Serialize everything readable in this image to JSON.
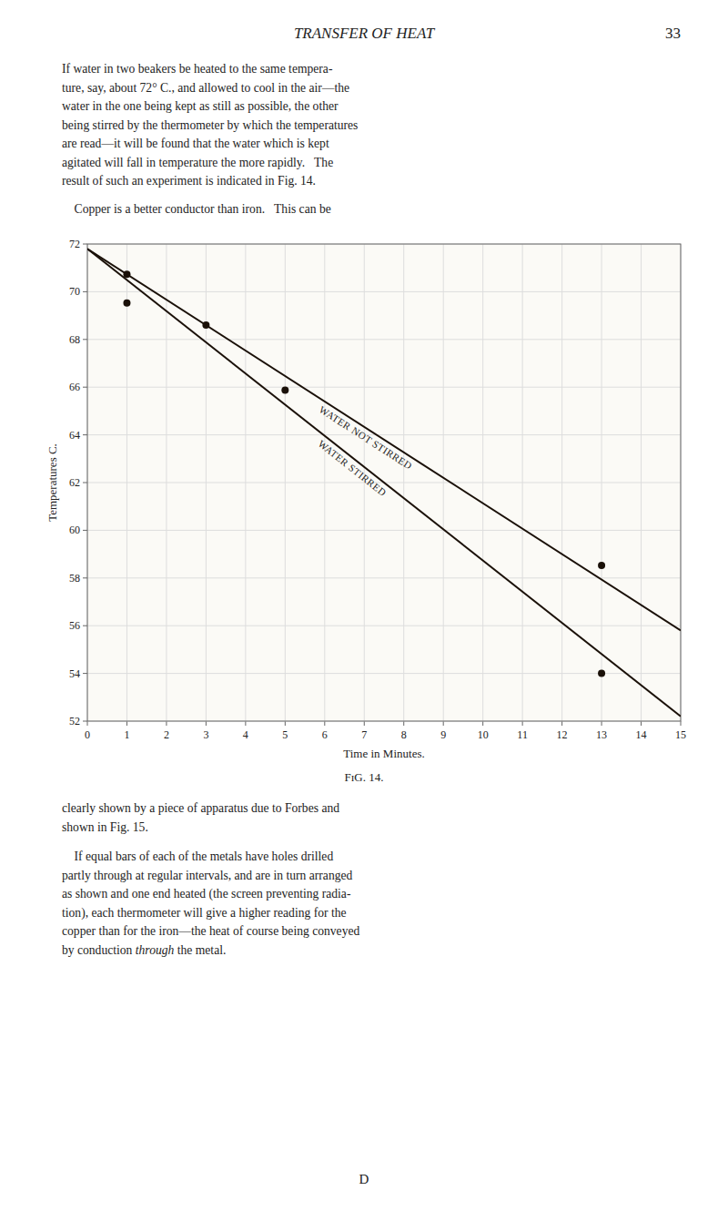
{
  "chart_data": {
    "type": "line",
    "title": "FɪG. 14.",
    "xlabel": "Time in Minutes.",
    "ylabel": "Temperatures C.",
    "xlim": [
      0,
      15
    ],
    "ylim": [
      52,
      72
    ],
    "xticks": [
      0,
      1,
      2,
      3,
      4,
      5,
      6,
      7,
      8,
      9,
      10,
      11,
      12,
      13,
      14,
      15
    ],
    "yticks": [
      52,
      54,
      56,
      58,
      60,
      62,
      64,
      66,
      68,
      70,
      72
    ],
    "grid": true,
    "series": [
      {
        "name": "WATER NOT STIRRED",
        "type": "line",
        "color": "#1a1008",
        "x": [
          0,
          15
        ],
        "values": [
          71.8,
          55.8
        ]
      },
      {
        "name": "WATER STIRRED",
        "type": "line",
        "color": "#1a1008",
        "x": [
          0,
          15
        ],
        "values": [
          71.8,
          52.2
        ]
      },
      {
        "type": "scatter",
        "marker": "circle",
        "color": "#1a1008",
        "x": [
          1,
          3,
          13
        ],
        "values": [
          70.73,
          68.6,
          58.53
        ]
      },
      {
        "type": "scatter",
        "marker": "circle",
        "color": "#1a1008",
        "x": [
          1,
          5,
          13
        ],
        "values": [
          69.53,
          65.87,
          54.0
        ]
      }
    ]
  },
  "page": {
    "header": "TRANSFER OF HEAT",
    "page_number": "33",
    "paragraphs": [
      [
        "If water in two beakers be heated to the same tempera-",
        "ture, say, about 72° C., and allowed to cool in the air—the",
        "water in the one being kept as still as possible, the other",
        "being stirred by the thermometer by which the temperatures",
        "are read—it will be found that the water which is kept",
        "agitated will fall in temperature the more rapidly.   The",
        "result of such an experiment is indicated in Fig. 14."
      ],
      [
        "    Copper is a better conductor than iron.   This can be"
      ],
      [
        "clearly shown by a piece of apparatus due to Forbes and",
        "shown in Fig. 15."
      ],
      [
        "    If equal bars of each of the metals have holes drilled",
        "partly through at regular intervals, and are in turn arranged",
        "as shown and one end heated (the screen preventing radia-",
        "tion), each thermometer will give a higher reading for the",
        "copper than for the iron—the heat of course being conveyed",
        [
          "by conduction ",
          "through",
          " the metal."
        ]
      ]
    ],
    "footer": "D"
  }
}
